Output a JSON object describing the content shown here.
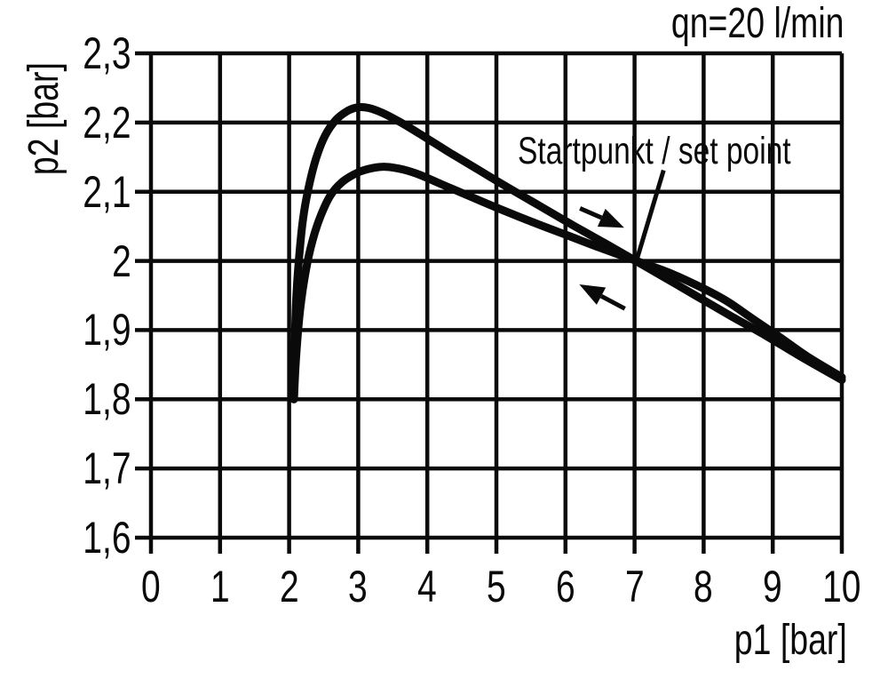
{
  "chart_data": {
    "type": "line",
    "title": "qn=20 l/min",
    "xlabel": "p1 [bar]",
    "ylabel": "p2 [bar]",
    "xlim": [
      0,
      10
    ],
    "ylim": [
      1.6,
      2.3
    ],
    "grid": true,
    "legend": "none",
    "background_color": "#ffffff",
    "line_color": "#0a0a0a",
    "annotation_label": "Startpunkt / set point",
    "set_point": {
      "p1": 7,
      "p2": 2.0
    },
    "x_ticks": [
      {
        "value": 0,
        "label": "0"
      },
      {
        "value": 1,
        "label": "1"
      },
      {
        "value": 2,
        "label": "2"
      },
      {
        "value": 3,
        "label": "3"
      },
      {
        "value": 4,
        "label": "4"
      },
      {
        "value": 5,
        "label": "5"
      },
      {
        "value": 6,
        "label": "6"
      },
      {
        "value": 7,
        "label": "7"
      },
      {
        "value": 8,
        "label": "8"
      },
      {
        "value": 9,
        "label": "9"
      },
      {
        "value": 10,
        "label": "10"
      }
    ],
    "y_ticks": [
      {
        "value": 2.3,
        "label": "2,3"
      },
      {
        "value": 2.2,
        "label": "2,2"
      },
      {
        "value": 2.1,
        "label": "2,1"
      },
      {
        "value": 2.0,
        "label": "2"
      },
      {
        "value": 1.9,
        "label": "1,9"
      },
      {
        "value": 1.8,
        "label": "1,8"
      },
      {
        "value": 1.7,
        "label": "1,7"
      },
      {
        "value": 1.6,
        "label": "1,6"
      }
    ],
    "series": [
      {
        "id": "curve-pressure-rising",
        "name": "outbound curve (upper, peak 2.22 bar at p1=3)",
        "points": [
          [
            2.07,
            1.8
          ],
          [
            2.08,
            1.87
          ],
          [
            2.1,
            1.94
          ],
          [
            2.14,
            2.0
          ],
          [
            2.2,
            2.06
          ],
          [
            2.28,
            2.105
          ],
          [
            2.39,
            2.148
          ],
          [
            2.52,
            2.181
          ],
          [
            2.68,
            2.204
          ],
          [
            2.85,
            2.217
          ],
          [
            3.0,
            2.222
          ],
          [
            3.15,
            2.221
          ],
          [
            3.35,
            2.214
          ],
          [
            3.6,
            2.201
          ],
          [
            3.9,
            2.183
          ],
          [
            4.3,
            2.158
          ],
          [
            4.7,
            2.134
          ],
          [
            5.1,
            2.11
          ],
          [
            5.6,
            2.081
          ],
          [
            6.1,
            2.052
          ],
          [
            6.6,
            2.024
          ],
          [
            7.0,
            2.001
          ],
          [
            7.4,
            1.978
          ],
          [
            7.9,
            1.949
          ],
          [
            8.4,
            1.92
          ],
          [
            8.9,
            1.892
          ],
          [
            9.4,
            1.862
          ],
          [
            10.0,
            1.828
          ]
        ]
      },
      {
        "id": "curve-pressure-falling",
        "name": "return curve (lower, peak 2.135 bar at p1=3.4)",
        "points": [
          [
            2.07,
            1.8
          ],
          [
            2.1,
            1.86
          ],
          [
            2.16,
            1.93
          ],
          [
            2.24,
            1.985
          ],
          [
            2.34,
            2.03
          ],
          [
            2.46,
            2.066
          ],
          [
            2.6,
            2.095
          ],
          [
            2.78,
            2.115
          ],
          [
            3.0,
            2.128
          ],
          [
            3.2,
            2.134
          ],
          [
            3.4,
            2.136
          ],
          [
            3.65,
            2.132
          ],
          [
            3.9,
            2.124
          ],
          [
            4.2,
            2.111
          ],
          [
            4.6,
            2.094
          ],
          [
            5.0,
            2.077
          ],
          [
            5.5,
            2.057
          ],
          [
            6.0,
            2.038
          ],
          [
            6.5,
            2.019
          ],
          [
            7.0,
            2.001
          ],
          [
            7.5,
            1.983
          ],
          [
            8.0,
            1.96
          ],
          [
            8.35,
            1.941
          ],
          [
            8.7,
            1.917
          ],
          [
            9.1,
            1.89
          ],
          [
            9.5,
            1.862
          ],
          [
            10.0,
            1.832
          ]
        ]
      }
    ],
    "annotations": [
      {
        "type": "leader",
        "from": [
          7.42,
          2.131
        ],
        "to": [
          7.03,
          2.001
        ]
      },
      {
        "type": "arrow",
        "from": [
          6.21,
          2.076
        ],
        "to": [
          6.85,
          2.048
        ]
      },
      {
        "type": "arrow",
        "from": [
          6.86,
          1.931
        ],
        "to": [
          6.2,
          1.966
        ]
      }
    ]
  }
}
